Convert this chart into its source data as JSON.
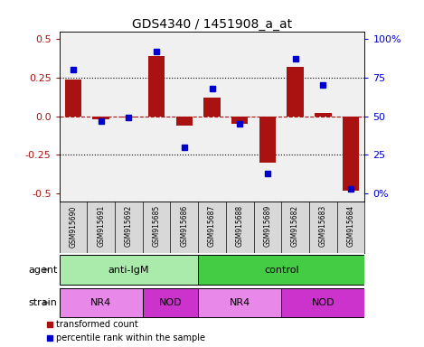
{
  "title": "GDS4340 / 1451908_a_at",
  "samples": [
    "GSM915690",
    "GSM915691",
    "GSM915692",
    "GSM915685",
    "GSM915686",
    "GSM915687",
    "GSM915688",
    "GSM915689",
    "GSM915682",
    "GSM915683",
    "GSM915684"
  ],
  "transformed_count": [
    0.24,
    -0.02,
    -0.01,
    0.39,
    -0.06,
    0.12,
    -0.05,
    -0.3,
    0.32,
    0.02,
    -0.48
  ],
  "percentile_rank": [
    80,
    47,
    49,
    92,
    30,
    68,
    45,
    13,
    87,
    70,
    3
  ],
  "bar_color": "#aa1111",
  "dot_color": "#0000cc",
  "agent_groups": [
    {
      "label": "anti-IgM",
      "start": 0,
      "end": 5,
      "color": "#aaeaaa"
    },
    {
      "label": "control",
      "start": 5,
      "end": 11,
      "color": "#44cc44"
    }
  ],
  "strain_groups": [
    {
      "label": "NR4",
      "start": 0,
      "end": 3,
      "color": "#e888e8"
    },
    {
      "label": "NOD",
      "start": 3,
      "end": 5,
      "color": "#cc33cc"
    },
    {
      "label": "NR4",
      "start": 5,
      "end": 8,
      "color": "#e888e8"
    },
    {
      "label": "NOD",
      "start": 8,
      "end": 11,
      "color": "#cc33cc"
    }
  ],
  "ylim": [
    -0.55,
    0.55
  ],
  "yticks_left": [
    -0.5,
    -0.25,
    0.0,
    0.25,
    0.5
  ],
  "yticks_right": [
    0,
    25,
    50,
    75,
    100
  ],
  "ytick_labels_right": [
    "0%",
    "25",
    "50",
    "75",
    "100%"
  ],
  "hlines_dotted": [
    -0.25,
    0.25
  ],
  "hline_dashed": 0.0,
  "plot_bg_color": "#f0f0f0",
  "label_bg_color": "#d8d8d8",
  "n_samples": 11
}
